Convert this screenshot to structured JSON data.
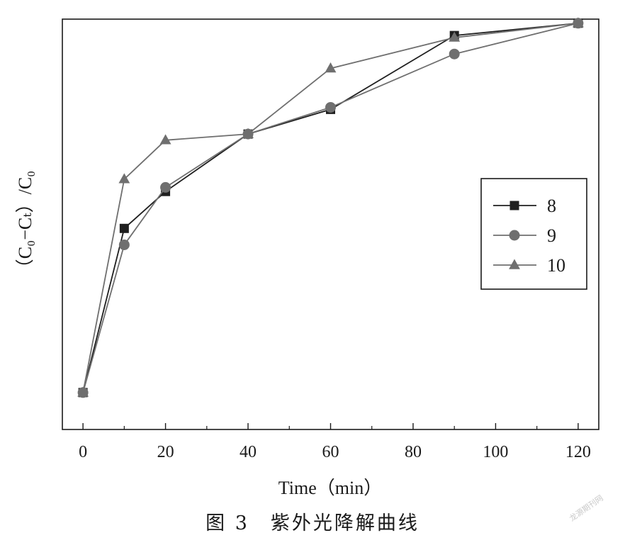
{
  "chart_data": {
    "type": "line",
    "xlabel": "Time（min）",
    "ylabel": "（C₀−Cₜ）/C₀",
    "xlim": [
      -5,
      125
    ],
    "ylim": [
      0,
      1
    ],
    "xticks": [
      0,
      20,
      40,
      60,
      80,
      100,
      120
    ],
    "yticks": [],
    "grid": false,
    "legend_position": "right",
    "series": [
      {
        "name": "8",
        "marker": "square",
        "color": "#1f1f1f",
        "x": [
          0,
          10,
          20,
          40,
          60,
          90,
          120
        ],
        "y": [
          0.09,
          0.49,
          0.58,
          0.72,
          0.78,
          0.96,
          0.99
        ]
      },
      {
        "name": "9",
        "marker": "circle",
        "color": "#6f6f6f",
        "x": [
          0,
          10,
          20,
          40,
          60,
          90,
          120
        ],
        "y": [
          0.09,
          0.45,
          0.59,
          0.72,
          0.785,
          0.915,
          0.99
        ]
      },
      {
        "name": "10",
        "marker": "triangle",
        "color": "#6f6f6f",
        "x": [
          0,
          10,
          20,
          40,
          60,
          90,
          120
        ],
        "y": [
          0.09,
          0.61,
          0.705,
          0.72,
          0.88,
          0.955,
          0.99
        ]
      }
    ]
  },
  "caption": "图 3　紫外光降解曲线",
  "watermark": "龙源期刊网"
}
